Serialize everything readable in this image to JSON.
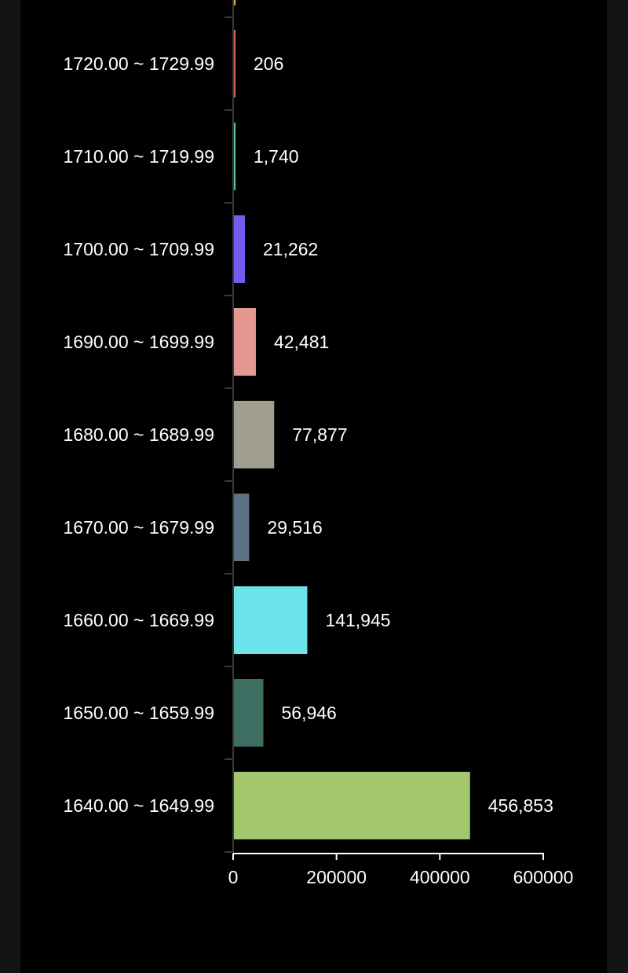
{
  "colors": {
    "page_background": "#131415",
    "chart_background": "#000000",
    "text": "#ffffff",
    "axis": "#ffffff",
    "tick": "#3a3a3a"
  },
  "chart_data": {
    "type": "bar",
    "orientation": "horizontal",
    "title": "",
    "xlabel": "",
    "ylabel": "",
    "xlim": [
      0,
      600000
    ],
    "x_ticks": [
      "0",
      "200000",
      "400000",
      "600000"
    ],
    "x_tick_values": [
      0,
      200000,
      400000,
      600000
    ],
    "grid": false,
    "legend": "none",
    "partially_visible_top_category": {
      "color": "#e8b84a",
      "label_visible": false
    },
    "categories": [
      "1720.00 ~ 1729.99",
      "1710.00 ~ 1719.99",
      "1700.00 ~ 1709.99",
      "1690.00 ~ 1699.99",
      "1680.00 ~ 1689.99",
      "1670.00 ~ 1679.99",
      "1660.00 ~ 1669.99",
      "1650.00 ~ 1659.99",
      "1640.00 ~ 1649.99"
    ],
    "values": [
      206,
      1740,
      21262,
      42481,
      77877,
      29516,
      141945,
      56946,
      456853
    ],
    "value_labels": [
      "206",
      "1,740",
      "21,262",
      "42,481",
      "77,877",
      "29,516",
      "141,945",
      "56,946",
      "456,853"
    ],
    "colors": [
      "#d9665b",
      "#5bbfa8",
      "#6f5cf2",
      "#e59892",
      "#a19e8f",
      "#5e7182",
      "#6de3ec",
      "#3d6e61",
      "#a2c76c"
    ]
  }
}
